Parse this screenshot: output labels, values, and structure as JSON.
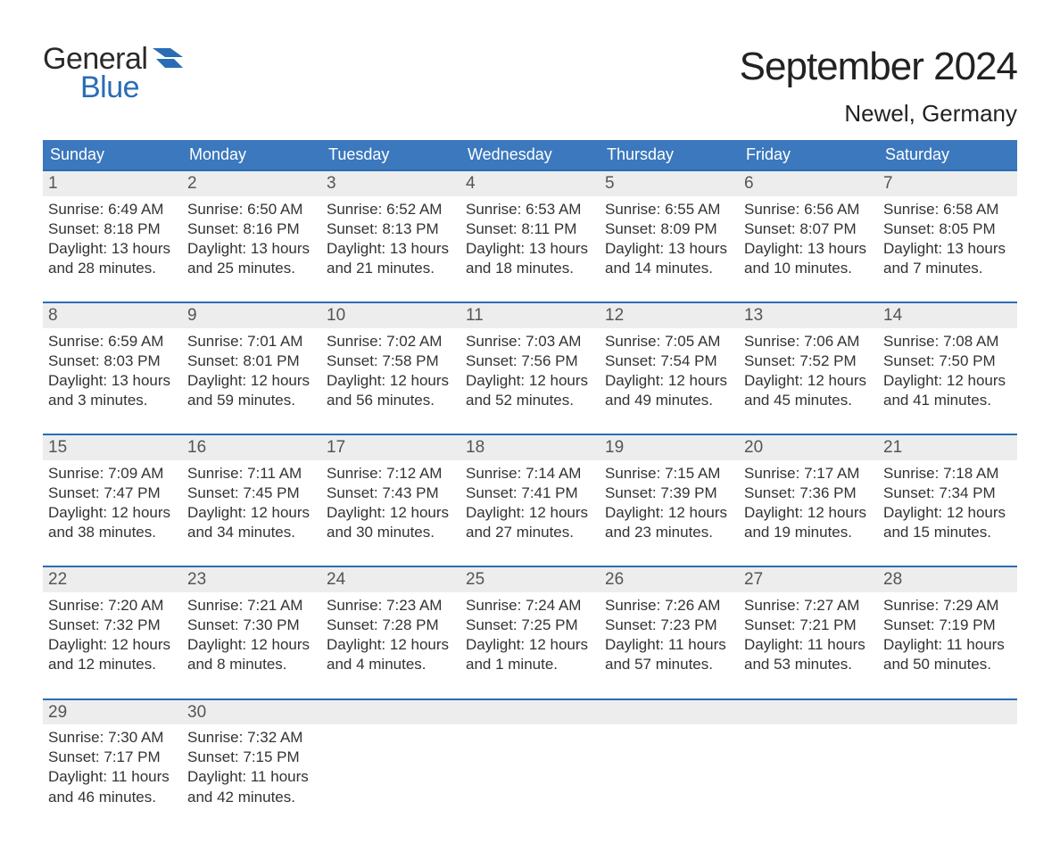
{
  "logo": {
    "general": "General",
    "blue": "Blue"
  },
  "title": "September 2024",
  "location": "Newel, Germany",
  "colors": {
    "header_bg": "#3b78bd",
    "accent": "#2a6db5",
    "strip_bg": "#ededed",
    "page_bg": "#ffffff",
    "text": "#333333",
    "muted": "#555555"
  },
  "day_names": [
    "Sunday",
    "Monday",
    "Tuesday",
    "Wednesday",
    "Thursday",
    "Friday",
    "Saturday"
  ],
  "days": [
    {
      "n": "1",
      "sunrise": "Sunrise: 6:49 AM",
      "sunset": "Sunset: 8:18 PM",
      "dl1": "Daylight: 13 hours",
      "dl2": "and 28 minutes."
    },
    {
      "n": "2",
      "sunrise": "Sunrise: 6:50 AM",
      "sunset": "Sunset: 8:16 PM",
      "dl1": "Daylight: 13 hours",
      "dl2": "and 25 minutes."
    },
    {
      "n": "3",
      "sunrise": "Sunrise: 6:52 AM",
      "sunset": "Sunset: 8:13 PM",
      "dl1": "Daylight: 13 hours",
      "dl2": "and 21 minutes."
    },
    {
      "n": "4",
      "sunrise": "Sunrise: 6:53 AM",
      "sunset": "Sunset: 8:11 PM",
      "dl1": "Daylight: 13 hours",
      "dl2": "and 18 minutes."
    },
    {
      "n": "5",
      "sunrise": "Sunrise: 6:55 AM",
      "sunset": "Sunset: 8:09 PM",
      "dl1": "Daylight: 13 hours",
      "dl2": "and 14 minutes."
    },
    {
      "n": "6",
      "sunrise": "Sunrise: 6:56 AM",
      "sunset": "Sunset: 8:07 PM",
      "dl1": "Daylight: 13 hours",
      "dl2": "and 10 minutes."
    },
    {
      "n": "7",
      "sunrise": "Sunrise: 6:58 AM",
      "sunset": "Sunset: 8:05 PM",
      "dl1": "Daylight: 13 hours",
      "dl2": "and 7 minutes."
    },
    {
      "n": "8",
      "sunrise": "Sunrise: 6:59 AM",
      "sunset": "Sunset: 8:03 PM",
      "dl1": "Daylight: 13 hours",
      "dl2": "and 3 minutes."
    },
    {
      "n": "9",
      "sunrise": "Sunrise: 7:01 AM",
      "sunset": "Sunset: 8:01 PM",
      "dl1": "Daylight: 12 hours",
      "dl2": "and 59 minutes."
    },
    {
      "n": "10",
      "sunrise": "Sunrise: 7:02 AM",
      "sunset": "Sunset: 7:58 PM",
      "dl1": "Daylight: 12 hours",
      "dl2": "and 56 minutes."
    },
    {
      "n": "11",
      "sunrise": "Sunrise: 7:03 AM",
      "sunset": "Sunset: 7:56 PM",
      "dl1": "Daylight: 12 hours",
      "dl2": "and 52 minutes."
    },
    {
      "n": "12",
      "sunrise": "Sunrise: 7:05 AM",
      "sunset": "Sunset: 7:54 PM",
      "dl1": "Daylight: 12 hours",
      "dl2": "and 49 minutes."
    },
    {
      "n": "13",
      "sunrise": "Sunrise: 7:06 AM",
      "sunset": "Sunset: 7:52 PM",
      "dl1": "Daylight: 12 hours",
      "dl2": "and 45 minutes."
    },
    {
      "n": "14",
      "sunrise": "Sunrise: 7:08 AM",
      "sunset": "Sunset: 7:50 PM",
      "dl1": "Daylight: 12 hours",
      "dl2": "and 41 minutes."
    },
    {
      "n": "15",
      "sunrise": "Sunrise: 7:09 AM",
      "sunset": "Sunset: 7:47 PM",
      "dl1": "Daylight: 12 hours",
      "dl2": "and 38 minutes."
    },
    {
      "n": "16",
      "sunrise": "Sunrise: 7:11 AM",
      "sunset": "Sunset: 7:45 PM",
      "dl1": "Daylight: 12 hours",
      "dl2": "and 34 minutes."
    },
    {
      "n": "17",
      "sunrise": "Sunrise: 7:12 AM",
      "sunset": "Sunset: 7:43 PM",
      "dl1": "Daylight: 12 hours",
      "dl2": "and 30 minutes."
    },
    {
      "n": "18",
      "sunrise": "Sunrise: 7:14 AM",
      "sunset": "Sunset: 7:41 PM",
      "dl1": "Daylight: 12 hours",
      "dl2": "and 27 minutes."
    },
    {
      "n": "19",
      "sunrise": "Sunrise: 7:15 AM",
      "sunset": "Sunset: 7:39 PM",
      "dl1": "Daylight: 12 hours",
      "dl2": "and 23 minutes."
    },
    {
      "n": "20",
      "sunrise": "Sunrise: 7:17 AM",
      "sunset": "Sunset: 7:36 PM",
      "dl1": "Daylight: 12 hours",
      "dl2": "and 19 minutes."
    },
    {
      "n": "21",
      "sunrise": "Sunrise: 7:18 AM",
      "sunset": "Sunset: 7:34 PM",
      "dl1": "Daylight: 12 hours",
      "dl2": "and 15 minutes."
    },
    {
      "n": "22",
      "sunrise": "Sunrise: 7:20 AM",
      "sunset": "Sunset: 7:32 PM",
      "dl1": "Daylight: 12 hours",
      "dl2": "and 12 minutes."
    },
    {
      "n": "23",
      "sunrise": "Sunrise: 7:21 AM",
      "sunset": "Sunset: 7:30 PM",
      "dl1": "Daylight: 12 hours",
      "dl2": "and 8 minutes."
    },
    {
      "n": "24",
      "sunrise": "Sunrise: 7:23 AM",
      "sunset": "Sunset: 7:28 PM",
      "dl1": "Daylight: 12 hours",
      "dl2": "and 4 minutes."
    },
    {
      "n": "25",
      "sunrise": "Sunrise: 7:24 AM",
      "sunset": "Sunset: 7:25 PM",
      "dl1": "Daylight: 12 hours",
      "dl2": "and 1 minute."
    },
    {
      "n": "26",
      "sunrise": "Sunrise: 7:26 AM",
      "sunset": "Sunset: 7:23 PM",
      "dl1": "Daylight: 11 hours",
      "dl2": "and 57 minutes."
    },
    {
      "n": "27",
      "sunrise": "Sunrise: 7:27 AM",
      "sunset": "Sunset: 7:21 PM",
      "dl1": "Daylight: 11 hours",
      "dl2": "and 53 minutes."
    },
    {
      "n": "28",
      "sunrise": "Sunrise: 7:29 AM",
      "sunset": "Sunset: 7:19 PM",
      "dl1": "Daylight: 11 hours",
      "dl2": "and 50 minutes."
    },
    {
      "n": "29",
      "sunrise": "Sunrise: 7:30 AM",
      "sunset": "Sunset: 7:17 PM",
      "dl1": "Daylight: 11 hours",
      "dl2": "and 46 minutes."
    },
    {
      "n": "30",
      "sunrise": "Sunrise: 7:32 AM",
      "sunset": "Sunset: 7:15 PM",
      "dl1": "Daylight: 11 hours",
      "dl2": "and 42 minutes."
    }
  ]
}
